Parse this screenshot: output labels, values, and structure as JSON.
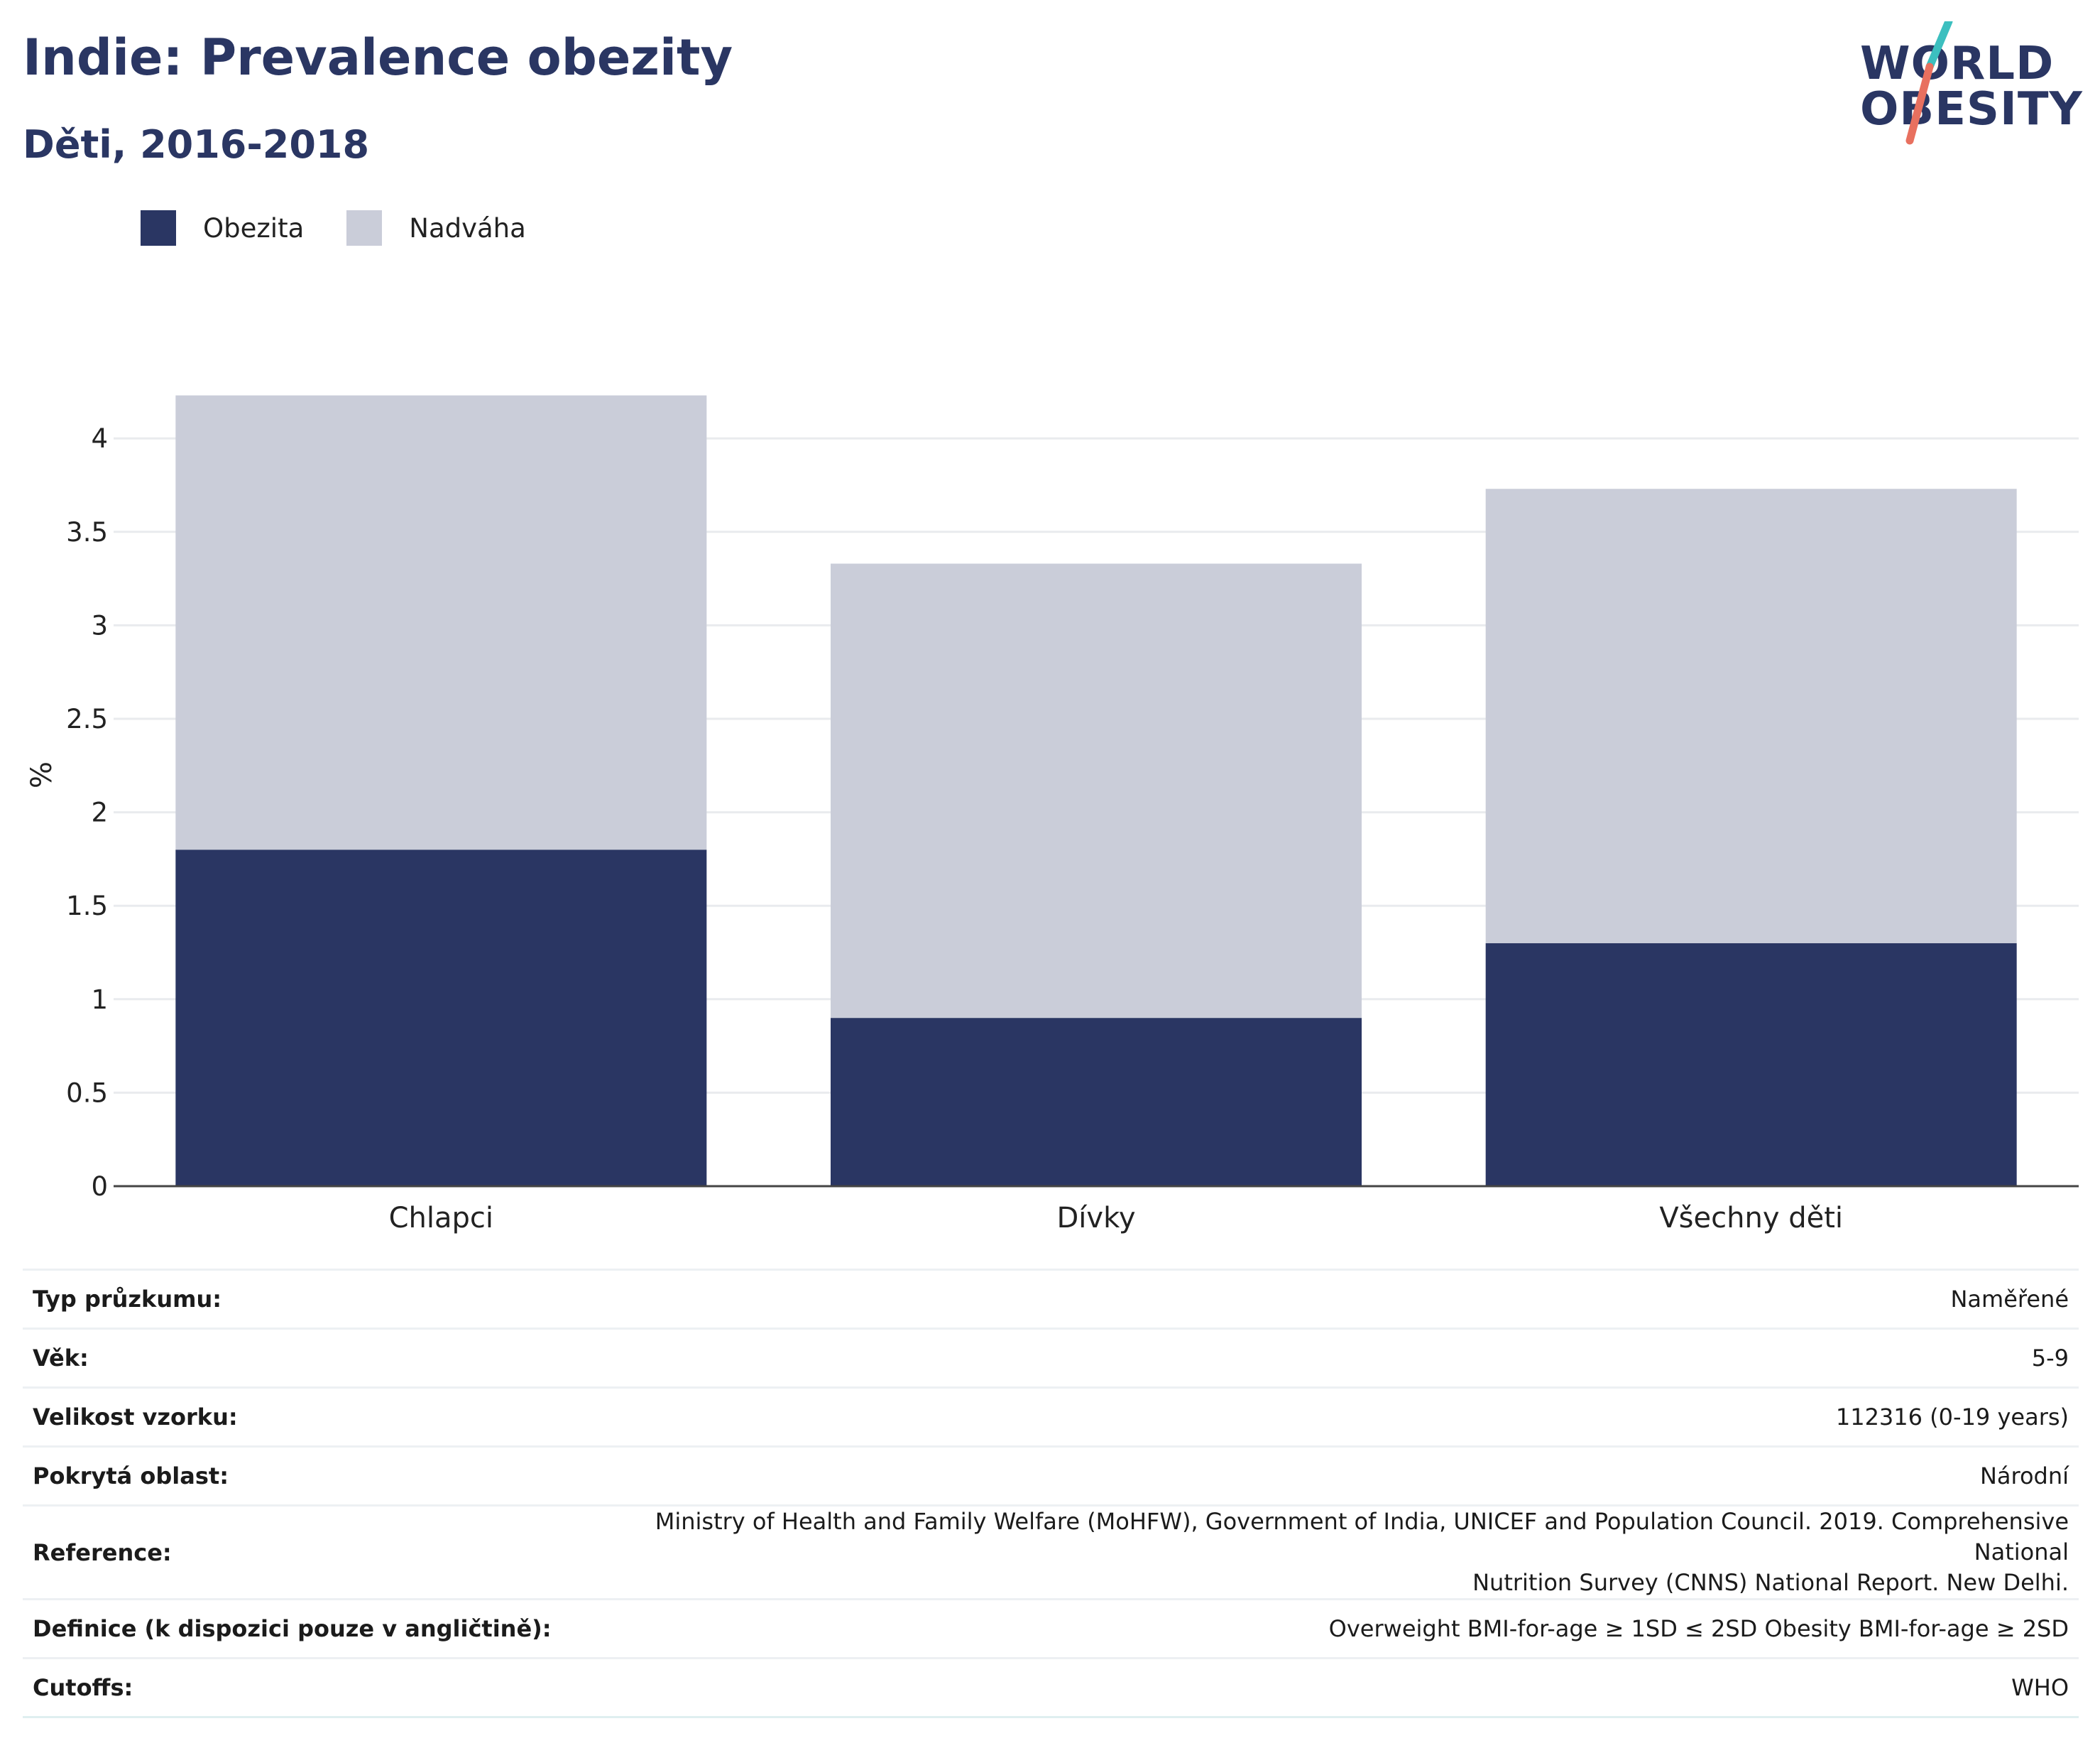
{
  "header": {
    "title": "Indie: Prevalence obezity",
    "subtitle": "Děti, 2016-2018"
  },
  "logo": {
    "line1": "WORLD",
    "line2": "OBESITY",
    "accent_teal": "#3cbfbf",
    "accent_coral": "#e8705f"
  },
  "colors": {
    "obesity": "#2a3663",
    "overweight": "#cacdd9",
    "title": "#2a3663"
  },
  "chart_data": {
    "type": "bar",
    "stacked": true,
    "categories": [
      "Chlapci",
      "Dívky",
      "Všechny děti"
    ],
    "series": [
      {
        "name": "Obezita",
        "values": [
          1.8,
          0.9,
          1.3
        ],
        "color": "#2a3663"
      },
      {
        "name": "Nadváha",
        "values": [
          2.43,
          2.43,
          2.43
        ],
        "color": "#cacdd9"
      }
    ],
    "ylabel": "%",
    "xlabel": "",
    "ylim": [
      0,
      4.4
    ],
    "yticks": [
      0,
      0.5,
      1,
      1.5,
      2,
      2.5,
      3,
      3.5,
      4
    ],
    "ytick_labels": [
      "0",
      "0.5",
      "1",
      "1.5",
      "2",
      "2.5",
      "3",
      "3.5",
      "4"
    ],
    "grid": true,
    "legend": "top-left"
  },
  "info": [
    {
      "key": "Typ průzkumu:",
      "value": "Naměřené"
    },
    {
      "key": "Věk:",
      "value": "5-9"
    },
    {
      "key": "Velikost vzorku:",
      "value": "112316 (0-19 years)"
    },
    {
      "key": "Pokrytá oblast:",
      "value": "Národní"
    },
    {
      "key": "Reference:",
      "value": "Ministry of Health and Family Welfare (MoHFW), Government of India, UNICEF and Population Council. 2019. Comprehensive National",
      "value2": "Nutrition Survey (CNNS) National Report. New Delhi."
    },
    {
      "key": "Definice (k dispozici pouze v angličtině):",
      "value": "Overweight BMI-for-age ≥ 1SD ≤ 2SD Obesity BMI-for-age ≥ 2SD"
    },
    {
      "key": "Cutoffs:",
      "value": "WHO"
    }
  ]
}
